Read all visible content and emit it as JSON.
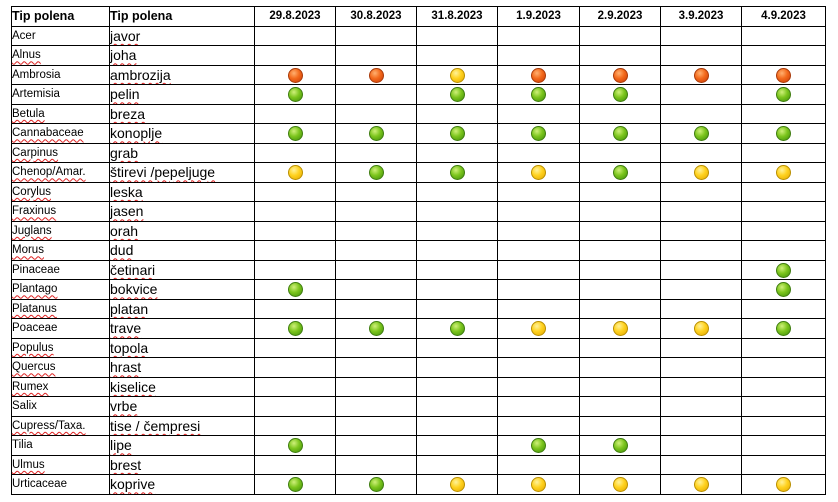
{
  "header": {
    "latin_label": "Tip polena",
    "local_label": "Tip polena",
    "dates": [
      "29.8.2023",
      "30.8.2023",
      "31.8.2023",
      "1.9.2023",
      "2.9.2023",
      "3.9.2023",
      "4.9.2023"
    ]
  },
  "level_colors": {
    "high": "#f36a1c",
    "moderate": "#ffd21f",
    "low": "#7cc51d"
  },
  "rows": [
    {
      "latin": "Acer",
      "local": "javor",
      "levels": [
        "",
        "",
        "",
        "",
        "",
        "",
        ""
      ]
    },
    {
      "latin": "Alnus",
      "local": "joha",
      "levels": [
        "",
        "",
        "",
        "",
        "",
        "",
        ""
      ]
    },
    {
      "latin": "Ambrosia",
      "local": "ambrozija",
      "levels": [
        "high",
        "high",
        "moderate",
        "high",
        "high",
        "high",
        "high"
      ]
    },
    {
      "latin": "Artemisia",
      "local": "pelin",
      "levels": [
        "low",
        "",
        "low",
        "low",
        "low",
        "",
        "low"
      ]
    },
    {
      "latin": "Betula",
      "local": "breza",
      "levels": [
        "",
        "",
        "",
        "",
        "",
        "",
        ""
      ]
    },
    {
      "latin": "Cannabaceae",
      "local": "konoplje",
      "levels": [
        "low",
        "low",
        "low",
        "low",
        "low",
        "low",
        "low"
      ]
    },
    {
      "latin": "Carpinus",
      "local": "grab",
      "levels": [
        "",
        "",
        "",
        "",
        "",
        "",
        ""
      ]
    },
    {
      "latin": "Chenop/Amar.",
      "local": "štirevi /pepeljuge",
      "levels": [
        "moderate",
        "low",
        "low",
        "moderate",
        "low",
        "moderate",
        "moderate"
      ]
    },
    {
      "latin": "Corylus",
      "local": "leska",
      "levels": [
        "",
        "",
        "",
        "",
        "",
        "",
        ""
      ]
    },
    {
      "latin": "Fraxinus",
      "local": "jasen",
      "levels": [
        "",
        "",
        "",
        "",
        "",
        "",
        ""
      ]
    },
    {
      "latin": "Juglans",
      "local": "orah",
      "levels": [
        "",
        "",
        "",
        "",
        "",
        "",
        ""
      ]
    },
    {
      "latin": "Morus",
      "local": "dud",
      "levels": [
        "",
        "",
        "",
        "",
        "",
        "",
        ""
      ]
    },
    {
      "latin": "Pinaceae",
      "local": "četinari",
      "levels": [
        "",
        "",
        "",
        "",
        "",
        "",
        "low"
      ]
    },
    {
      "latin": "Plantago",
      "local": "bokvice",
      "levels": [
        "low",
        "",
        "",
        "",
        "",
        "",
        "low"
      ]
    },
    {
      "latin": "Platanus",
      "local": "platan",
      "levels": [
        "",
        "",
        "",
        "",
        "",
        "",
        ""
      ]
    },
    {
      "latin": "Poaceae",
      "local": "trave",
      "levels": [
        "low",
        "low",
        "low",
        "moderate",
        "moderate",
        "moderate",
        "low"
      ]
    },
    {
      "latin": "Populus",
      "local": "topola",
      "levels": [
        "",
        "",
        "",
        "",
        "",
        "",
        ""
      ]
    },
    {
      "latin": "Quercus",
      "local": "hrast",
      "levels": [
        "",
        "",
        "",
        "",
        "",
        "",
        ""
      ]
    },
    {
      "latin": "Rumex",
      "local": "kiselice",
      "levels": [
        "",
        "",
        "",
        "",
        "",
        "",
        ""
      ]
    },
    {
      "latin": "Salix",
      "local": "vrbe",
      "levels": [
        "",
        "",
        "",
        "",
        "",
        "",
        ""
      ]
    },
    {
      "latin": "Cupress/Taxa.",
      "local": "tise / čempresi",
      "levels": [
        "",
        "",
        "",
        "",
        "",
        "",
        ""
      ]
    },
    {
      "latin": "Tilia",
      "local": "lipe",
      "levels": [
        "low",
        "",
        "",
        "low",
        "low",
        "",
        ""
      ]
    },
    {
      "latin": "Ulmus",
      "local": "brest",
      "levels": [
        "",
        "",
        "",
        "",
        "",
        "",
        ""
      ]
    },
    {
      "latin": "Urticaceae",
      "local": "koprive",
      "levels": [
        "low",
        "low",
        "moderate",
        "moderate",
        "moderate",
        "moderate",
        "moderate"
      ]
    }
  ]
}
